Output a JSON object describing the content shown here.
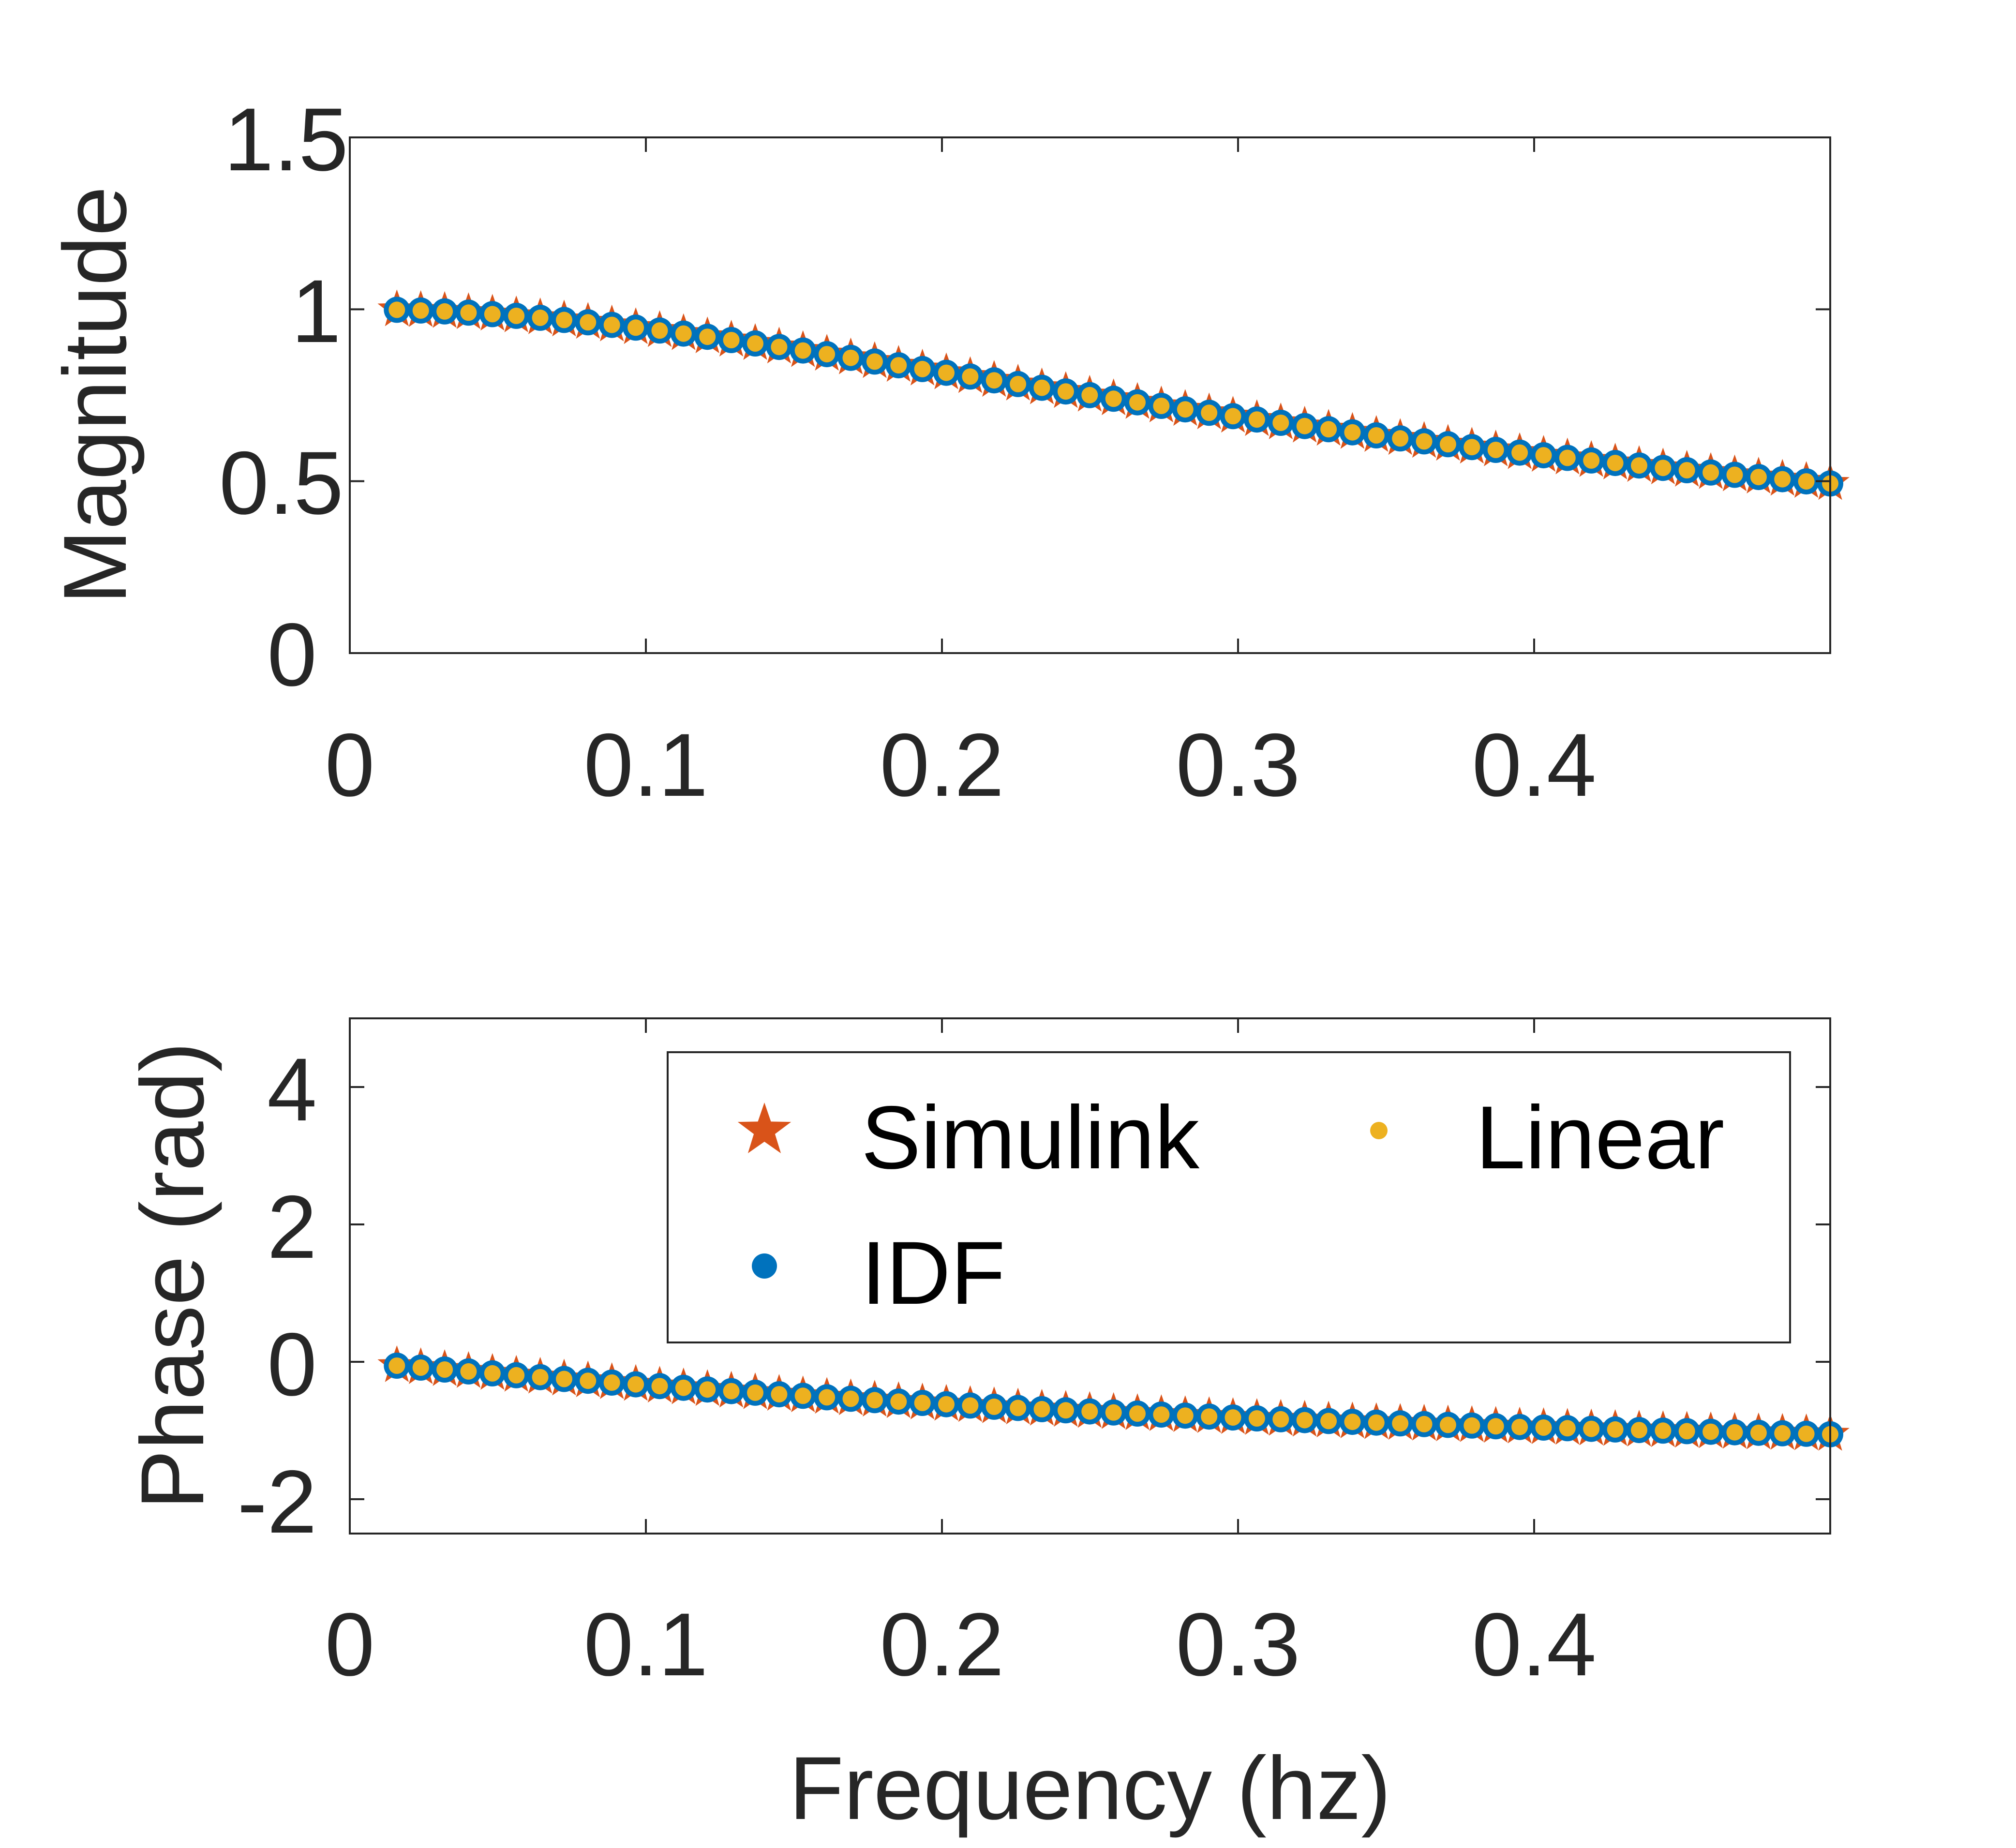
{
  "figure": {
    "xlabel": "Frequency (hz)"
  },
  "colors": {
    "axis": "#262626",
    "simulink": "#D95319",
    "idf": "#0072BD",
    "linear": "#EDB120"
  },
  "chart_data": [
    {
      "type": "scatter",
      "panel": "top",
      "title": "",
      "xlabel": "",
      "ylabel": "Magnitude",
      "xlim": [
        0,
        0.5
      ],
      "ylim": [
        0,
        1.5
      ],
      "xticks": [
        0,
        0.1,
        0.2,
        0.3,
        0.4
      ],
      "xtick_labels": [
        "0",
        "0.1",
        "0.2",
        "0.3",
        "0.4"
      ],
      "yticks": [
        0,
        0.5,
        1,
        1.5
      ],
      "ytick_labels": [
        "0",
        "0.5",
        "1",
        "1.5"
      ],
      "grid": false,
      "x_range": [
        0.0159,
        0.5
      ],
      "n_points": 61,
      "y_model": "1/sqrt(1+(x/0.2836)^2)",
      "series": [
        {
          "name": "Simulink",
          "marker": "star",
          "color": "#D95319"
        },
        {
          "name": "IDF",
          "marker": "filled-circle",
          "color": "#0072BD"
        },
        {
          "name": "Linear",
          "marker": "small-dot",
          "color": "#EDB120"
        }
      ]
    },
    {
      "type": "scatter",
      "panel": "bottom",
      "title": "",
      "xlabel": "Frequency (hz)",
      "ylabel": "Phase (rad)",
      "xlim": [
        0,
        0.5
      ],
      "ylim": [
        -2.5,
        5
      ],
      "xticks": [
        0,
        0.1,
        0.2,
        0.3,
        0.4
      ],
      "xtick_labels": [
        "0",
        "0.1",
        "0.2",
        "0.3",
        "0.4"
      ],
      "yticks": [
        -2,
        0,
        2,
        4
      ],
      "ytick_labels": [
        "-2",
        "0",
        "2",
        "4"
      ],
      "grid": false,
      "legend_position": "top-right",
      "legend_columns": 2,
      "x_range": [
        0.0159,
        0.5
      ],
      "n_points": 61,
      "y_model": "-atan(x/0.2836)",
      "series": [
        {
          "name": "Simulink",
          "marker": "star",
          "color": "#D95319"
        },
        {
          "name": "IDF",
          "marker": "filled-circle",
          "color": "#0072BD"
        },
        {
          "name": "Linear",
          "marker": "small-dot",
          "color": "#EDB120"
        }
      ]
    }
  ]
}
